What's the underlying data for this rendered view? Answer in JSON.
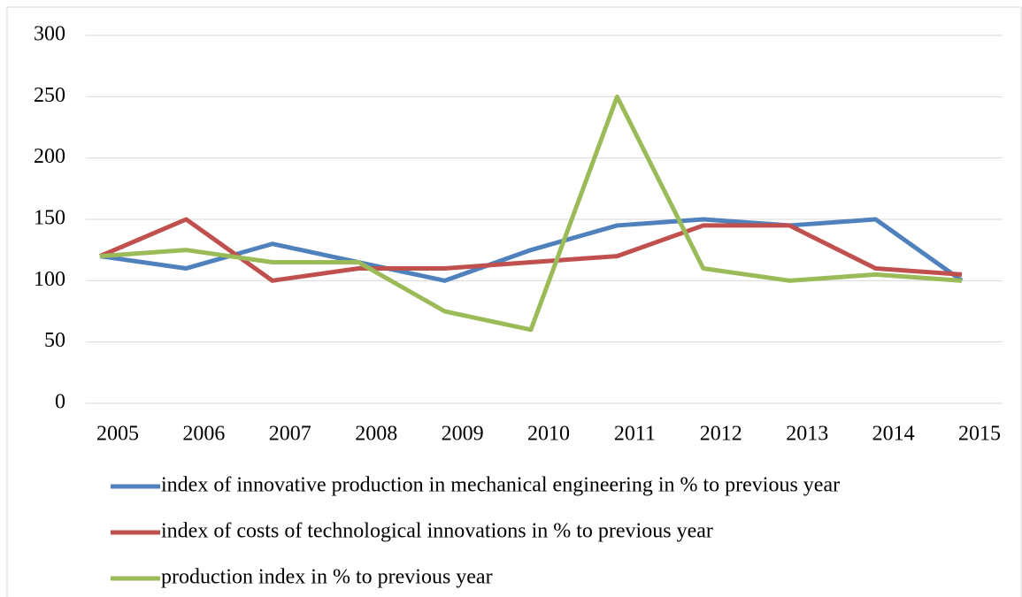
{
  "chart_data": {
    "type": "line",
    "categories": [
      "2005",
      "2006",
      "2007",
      "2008",
      "2009",
      "2010",
      "2011",
      "2012",
      "2013",
      "2014",
      "2015"
    ],
    "series": [
      {
        "name": "index of innovative production in mechanical engineering in % to previous year",
        "color": "#4f81bd",
        "values": [
          120,
          110,
          130,
          115,
          100,
          125,
          145,
          150,
          145,
          150,
          100
        ]
      },
      {
        "name": "index of costs of technological innovations in % to previous year",
        "color": "#c0504d",
        "values": [
          120,
          150,
          100,
          110,
          110,
          115,
          120,
          145,
          145,
          110,
          105
        ]
      },
      {
        "name": "production index in % to previous year",
        "color": "#9bbb59",
        "values": [
          120,
          125,
          115,
          115,
          75,
          60,
          250,
          110,
          100,
          105,
          100
        ]
      }
    ],
    "ylim": [
      0,
      300
    ],
    "yticks": [
      0,
      50,
      100,
      150,
      200,
      250,
      300
    ],
    "grid": true,
    "legend": "bottom"
  }
}
